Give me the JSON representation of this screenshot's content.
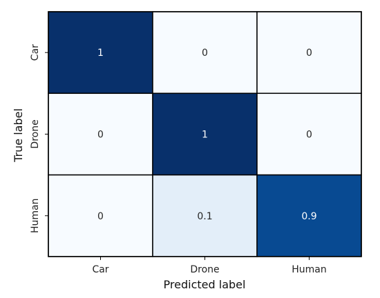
{
  "chart_data": {
    "type": "heatmap",
    "title": "",
    "xlabel": "Predicted label",
    "ylabel": "True label",
    "x_categories": [
      "Car",
      "Drone",
      "Human"
    ],
    "y_categories": [
      "Car",
      "Drone",
      "Human"
    ],
    "values": [
      [
        1,
        0,
        0
      ],
      [
        0,
        1,
        0
      ],
      [
        0,
        0.1,
        0.9
      ]
    ],
    "cell_labels": [
      [
        "1",
        "0",
        "0"
      ],
      [
        "0",
        "1",
        "0"
      ],
      [
        "0",
        "0.1",
        "0.9"
      ]
    ],
    "colormap": "Blues",
    "value_range": [
      0,
      1
    ],
    "colorbar": false,
    "colors": {
      "low": "#f7fbff",
      "mid": "#e3eef9",
      "high": "#08306b",
      "grid_line": "#000000",
      "text_dark": "#262626",
      "text_light": "#ffffff"
    }
  }
}
